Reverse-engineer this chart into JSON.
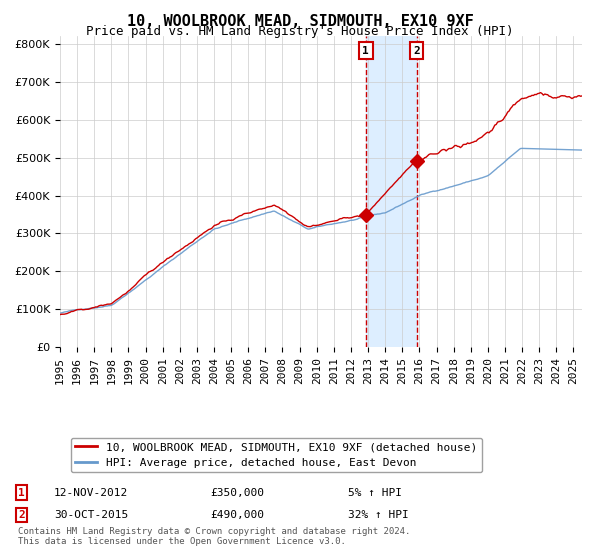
{
  "title": "10, WOOLBROOK MEAD, SIDMOUTH, EX10 9XF",
  "subtitle": "Price paid vs. HM Land Registry's House Price Index (HPI)",
  "hpi_label": "HPI: Average price, detached house, East Devon",
  "property_label": "10, WOOLBROOK MEAD, SIDMOUTH, EX10 9XF (detached house)",
  "red_color": "#cc0000",
  "blue_color": "#6699cc",
  "shade_color": "#ddeeff",
  "purchase1_date": 2012.87,
  "purchase1_price": 350000,
  "purchase2_date": 2015.83,
  "purchase2_price": 490000,
  "purchase1_label": "12-NOV-2012",
  "purchase1_pct": "5% ↑ HPI",
  "purchase2_label": "30-OCT-2015",
  "purchase2_pct": "32% ↑ HPI",
  "xmin": 1995,
  "xmax": 2025.5,
  "ymin": 0,
  "ymax": 820000,
  "footnote": "Contains HM Land Registry data © Crown copyright and database right 2024.\nThis data is licensed under the Open Government Licence v3.0.",
  "title_fontsize": 11,
  "subtitle_fontsize": 9,
  "axis_fontsize": 8,
  "legend_fontsize": 8
}
